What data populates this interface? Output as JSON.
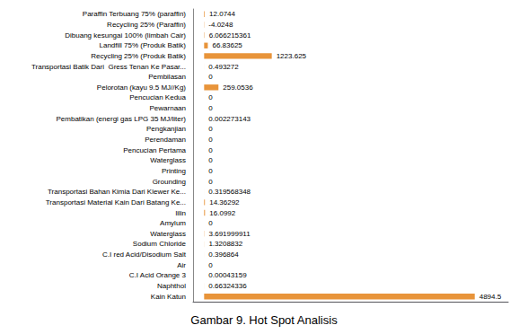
{
  "chart_data": {
    "type": "bar",
    "orientation": "horizontal",
    "title": "Gambar 9. Hot Spot Analisis",
    "categories": [
      "Paraffin Terbuang 75% (paraffin)",
      "Recycling 25% (Paraffin)",
      "Dibuang kesungai 100% (limbah Cair)",
      "Landfill 75% (Produk Batik)",
      "Recycling 25% (Produk Batik)",
      "Transportasi Batik Dari  Gress Tenan Ke Pasar...",
      "Pembilasan",
      "Pelorotan (kayu 9.5 MJ//Kg)",
      "Pencucian Kedua",
      "Pewarnaan",
      "Pembatikan (energi gas LPG 35 MJ/liter)",
      "Pengkanjian",
      "Perendaman",
      "Pencucian Pertama",
      "Waterglass",
      "Printing",
      "Grounding",
      "Transportasi Bahan Kimia Dari Klewer Ke...",
      "Transportasi Material Kain Dari Batang Ke...",
      "lilin",
      "Amylum",
      "Waterglass",
      "Sodium Chloride",
      "C.I red Acid/Disodium Salt",
      "Air",
      "C.I Acid Orange 3",
      "Naphthol",
      "Kain Katun"
    ],
    "values": [
      12.0744,
      -4.0248,
      6.066215361,
      66.83625,
      1223.625,
      0.493272,
      0,
      259.0536,
      0,
      0,
      0.002273143,
      0,
      0,
      0,
      0,
      0,
      0,
      0.319568348,
      14.36292,
      16.0992,
      0,
      3.691999911,
      1.3208832,
      0.396864,
      0,
      0.00043159,
      0.66324336,
      4894.5
    ],
    "color": "#E8943A",
    "xlim": [
      -200,
      5500
    ],
    "tick_labels": "y",
    "data_labels": true,
    "grid": false
  }
}
